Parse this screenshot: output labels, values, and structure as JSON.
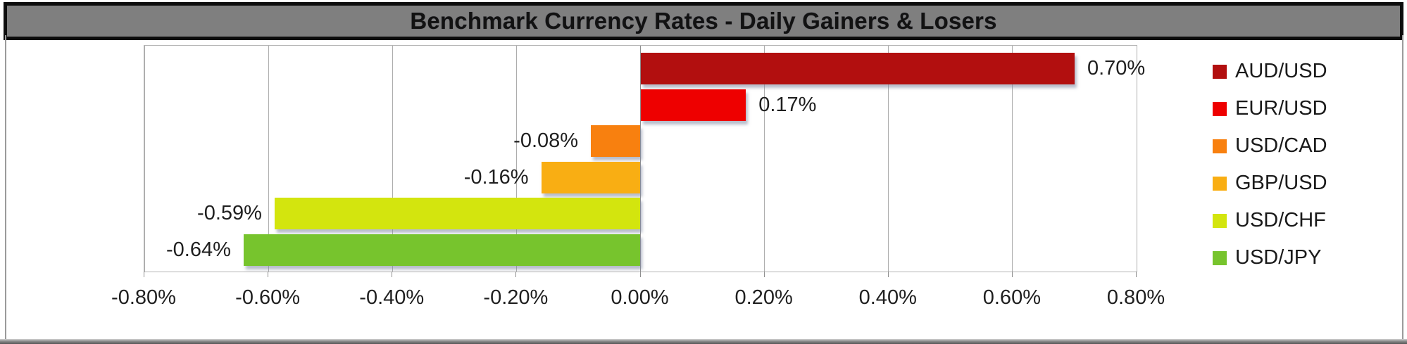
{
  "title": "Benchmark Currency Rates - Daily Gainers & Losers",
  "chart_data": {
    "type": "bar",
    "orientation": "horizontal",
    "title": "Benchmark Currency Rates - Daily Gainers & Losers",
    "categories": [
      "AUD/USD",
      "EUR/USD",
      "USD/CAD",
      "GBP/USD",
      "USD/CHF",
      "USD/JPY"
    ],
    "values": [
      0.7,
      0.17,
      -0.08,
      -0.16,
      -0.59,
      -0.64
    ],
    "data_labels": [
      "0.70%",
      "0.17%",
      "-0.08%",
      "-0.16%",
      "-0.59%",
      "-0.64%"
    ],
    "bar_colors": [
      "#b20f0f",
      "#ee0000",
      "#f8800f",
      "#f9ae13",
      "#d3e50e",
      "#77c42d"
    ],
    "xlim": [
      -0.8,
      0.8
    ],
    "x_tick_values": [
      -0.8,
      -0.6,
      -0.4,
      -0.2,
      0.0,
      0.2,
      0.4,
      0.6,
      0.8
    ],
    "x_tick_labels": [
      "-0.80%",
      "-0.60%",
      "-0.40%",
      "-0.20%",
      "0.00%",
      "0.20%",
      "0.40%",
      "0.60%",
      "0.80%"
    ],
    "grid": true,
    "legend_position": "right"
  },
  "style_colors": {
    "title_bg": "#7f7f7f",
    "title_text": "#121212",
    "title_border": "#0d0d0d",
    "plot_border": "#b3b3b3",
    "grid_line": "#adadad",
    "axis_text": "#1f1f1f",
    "outer_border": "#9b9b9b",
    "bar_shadow": "rgba(125,135,160,0.55)"
  }
}
